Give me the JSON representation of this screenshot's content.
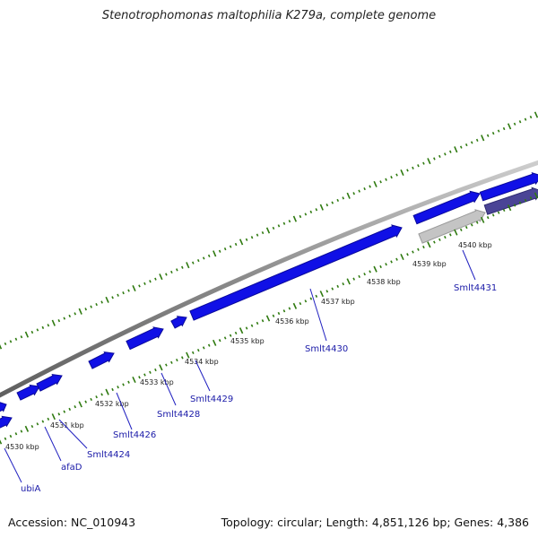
{
  "title": "Stenotrophomonas maltophilia K279a, complete genome",
  "footer": {
    "accession": "Accession: NC_010943",
    "summary": "Topology: circular; Length: 4,851,126 bp; Genes: 4,386"
  },
  "colors": {
    "backbone": "#8a8a8a",
    "gene_cds": "#1010e6",
    "gene_grey": "#c4c4c4",
    "gene_dark": "#4a4496",
    "tick_green": "#2f7a10",
    "label_blue": "#1a1aa8",
    "leader_line": "#2020c0"
  },
  "scale": {
    "tick_labels": [
      "4530 kbp",
      "4531 kbp",
      "4532 kbp",
      "4533 kbp",
      "4534 kbp",
      "4535 kbp",
      "4536 kbp",
      "4537 kbp",
      "4538 kbp",
      "4539 kbp",
      "4540 kbp"
    ]
  },
  "genes": [
    "ubiA",
    "afaD",
    "Smlt4424",
    "Smlt4426",
    "Smlt4428",
    "Smlt4429",
    "Smlt4430",
    "Smlt4431"
  ]
}
